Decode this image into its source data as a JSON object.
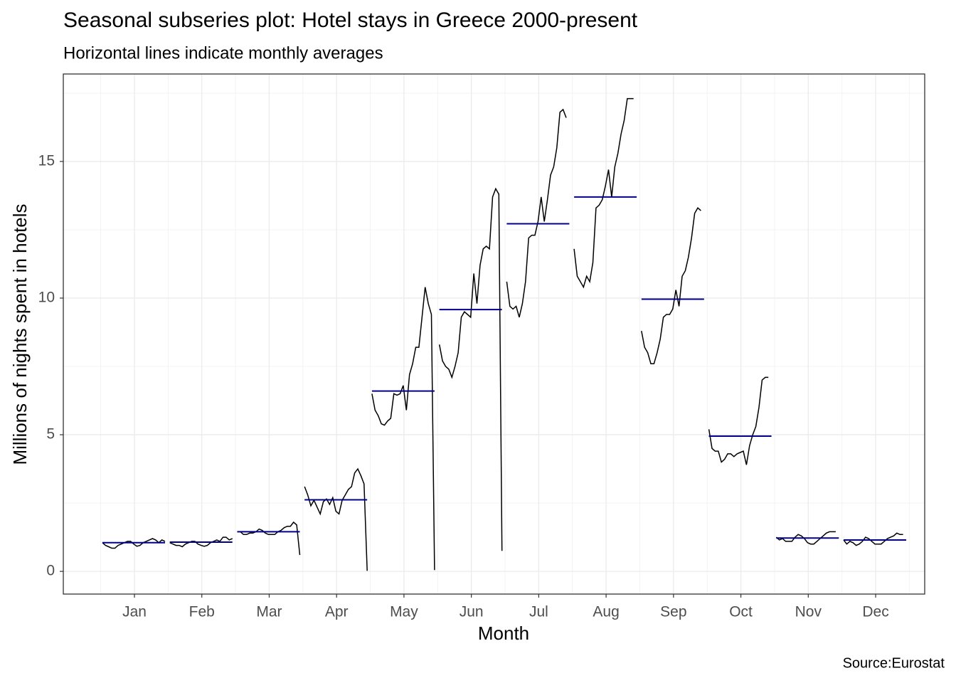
{
  "chart_data": {
    "type": "subseries",
    "title": "Seasonal subseries plot: Hotel stays in Greece 2000-present",
    "subtitle": "Horizontal lines indicate monthly averages",
    "x_label": "Month",
    "y_label": "Millions of nights spent in hotels",
    "caption": "Source:Eurostat",
    "categories": [
      "Jan",
      "Feb",
      "Mar",
      "Apr",
      "May",
      "Jun",
      "Jul",
      "Aug",
      "Sep",
      "Oct",
      "Nov",
      "Dec"
    ],
    "values": [
      [
        1.05,
        0.95,
        0.9,
        0.85,
        0.85,
        0.95,
        1.0,
        1.05,
        1.1,
        1.1,
        1.0,
        0.92,
        0.95,
        1.05,
        1.1,
        1.15,
        1.2,
        1.15,
        1.05,
        1.15,
        1.1
      ],
      [
        1.05,
        1.0,
        0.95,
        0.95,
        0.9,
        1.0,
        1.05,
        1.1,
        1.1,
        1.0,
        0.95,
        0.92,
        0.95,
        1.05,
        1.1,
        1.15,
        1.1,
        1.25,
        1.25,
        1.15,
        1.2
      ],
      [
        1.45,
        1.45,
        1.35,
        1.35,
        1.4,
        1.4,
        1.45,
        1.55,
        1.5,
        1.4,
        1.35,
        1.35,
        1.35,
        1.45,
        1.5,
        1.6,
        1.65,
        1.65,
        1.8,
        1.7,
        0.6
      ],
      [
        3.1,
        2.8,
        2.4,
        2.6,
        2.35,
        2.1,
        2.55,
        2.65,
        2.45,
        2.7,
        2.2,
        2.1,
        2.6,
        2.8,
        3.0,
        3.1,
        3.6,
        3.75,
        3.5,
        3.2,
        0.02
      ],
      [
        6.5,
        5.9,
        5.7,
        5.4,
        5.35,
        5.5,
        5.6,
        6.5,
        6.45,
        6.5,
        6.8,
        5.9,
        7.2,
        7.6,
        8.2,
        8.2,
        9.3,
        10.4,
        9.8,
        9.4,
        0.05
      ],
      [
        8.3,
        7.7,
        7.5,
        7.4,
        7.1,
        7.5,
        8.0,
        9.3,
        9.5,
        9.4,
        9.3,
        10.9,
        9.8,
        11.2,
        11.8,
        11.9,
        11.8,
        13.7,
        14.0,
        13.8,
        0.75
      ],
      [
        10.6,
        9.7,
        9.6,
        9.7,
        9.3,
        9.8,
        10.6,
        12.2,
        12.3,
        12.3,
        12.8,
        13.7,
        12.8,
        13.6,
        14.5,
        14.8,
        15.5,
        16.8,
        16.9,
        16.6
      ],
      [
        11.8,
        10.8,
        10.6,
        10.4,
        10.8,
        10.6,
        11.3,
        13.3,
        13.4,
        13.6,
        14.1,
        14.7,
        13.7,
        14.8,
        15.3,
        16.0,
        16.5,
        17.3,
        17.3,
        17.3
      ],
      [
        8.8,
        8.2,
        8.0,
        7.6,
        7.6,
        8.0,
        8.5,
        9.3,
        9.4,
        9.4,
        9.6,
        10.3,
        9.7,
        10.8,
        11.0,
        11.5,
        12.2,
        13.1,
        13.3,
        13.2
      ],
      [
        5.2,
        4.5,
        4.4,
        4.4,
        4.0,
        4.1,
        4.3,
        4.3,
        4.2,
        4.3,
        4.35,
        4.4,
        3.9,
        4.6,
        5.0,
        5.3,
        6.0,
        7.0,
        7.1,
        7.1
      ],
      [
        1.25,
        1.15,
        1.2,
        1.1,
        1.1,
        1.1,
        1.25,
        1.35,
        1.3,
        1.2,
        1.05,
        1.0,
        1.0,
        1.1,
        1.2,
        1.3,
        1.4,
        1.45,
        1.45,
        1.45
      ],
      [
        1.15,
        1.0,
        1.1,
        1.05,
        0.95,
        1.0,
        1.1,
        1.25,
        1.2,
        1.1,
        1.0,
        1.0,
        1.0,
        1.1,
        1.2,
        1.25,
        1.3,
        1.4,
        1.35,
        1.35
      ]
    ],
    "averages": [
      1.05,
      1.07,
      1.45,
      2.62,
      6.6,
      9.58,
      12.72,
      13.7,
      9.96,
      4.95,
      1.22,
      1.15
    ],
    "line_color": "#000000",
    "average_color": "#00008b",
    "ylim": [
      -0.83,
      18.2
    ],
    "yticks": [
      0,
      5,
      10,
      15
    ],
    "grid": true
  }
}
